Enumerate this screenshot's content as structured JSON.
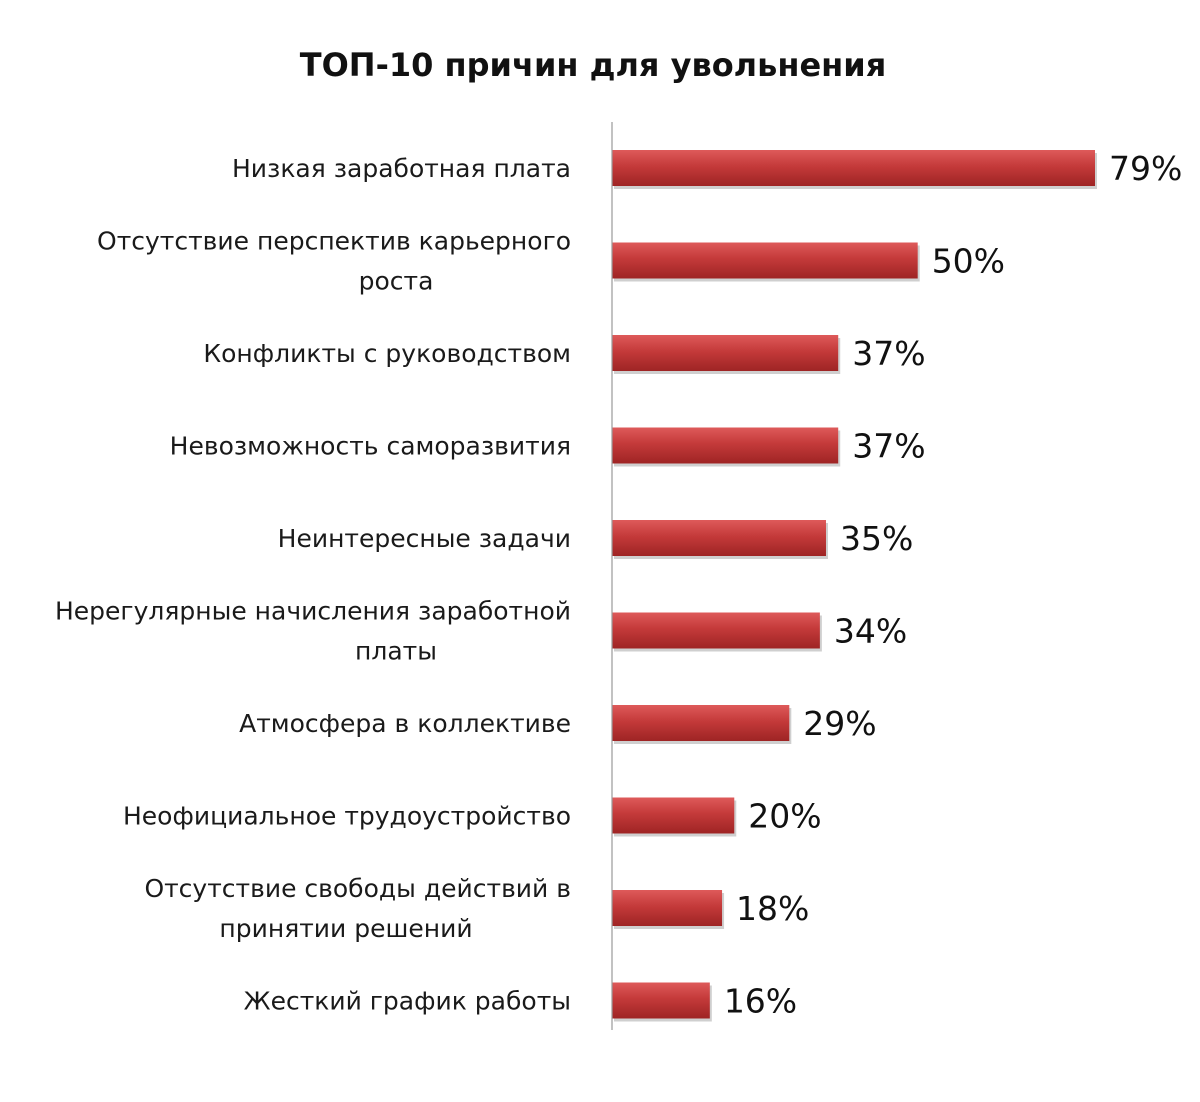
{
  "chart_data": {
    "type": "bar",
    "orientation": "horizontal",
    "title": "ТОП-10 причин для увольнения",
    "xlabel": "",
    "ylabel": "",
    "grid": false,
    "legend": "none",
    "xlim": [
      0,
      80
    ],
    "value_suffix": "%",
    "categories": [
      [
        "Низкая заработная плата"
      ],
      [
        "Отсутствие перспектив карьерного",
        "роста"
      ],
      [
        "Конфликты с руководством"
      ],
      [
        "Невозможность саморазвития"
      ],
      [
        "Неинтересные задачи"
      ],
      [
        "Нерегулярные начисления заработной",
        "платы"
      ],
      [
        "Атмосфера в коллективе"
      ],
      [
        "Неофициальное трудоустройство"
      ],
      [
        "Отсутствие свободы действий в",
        "принятии решений"
      ],
      [
        "Жесткий график работы"
      ]
    ],
    "values": [
      79,
      50,
      37,
      37,
      35,
      34,
      29,
      20,
      18,
      16
    ],
    "value_labels": [
      "79%",
      "50%",
      "37%",
      "37%",
      "35%",
      "34%",
      "29%",
      "20%",
      "18%",
      "16%"
    ],
    "colors": {
      "bar": "#c43a3a",
      "bar_light": "#de5a5a",
      "bar_dark": "#9e2424",
      "axis": "#9a9a9a"
    }
  }
}
